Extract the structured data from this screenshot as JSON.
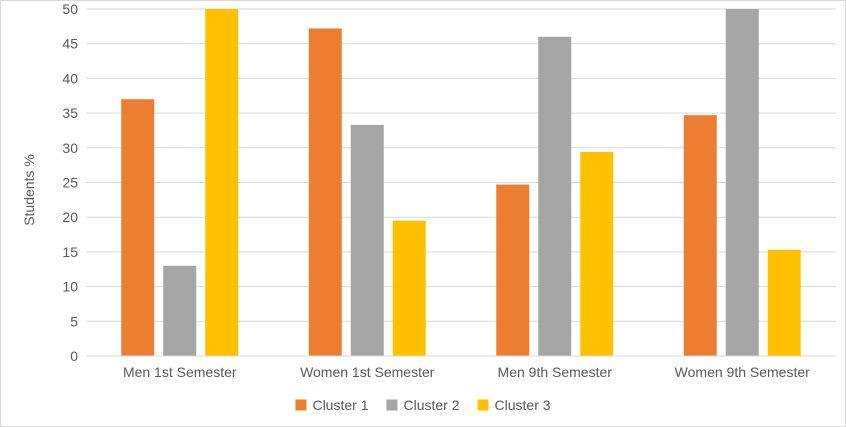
{
  "chart_data": {
    "type": "bar",
    "title": "",
    "xlabel": "",
    "ylabel": "Students %",
    "ylim": [
      0,
      50
    ],
    "yticks": [
      0,
      5,
      10,
      15,
      20,
      25,
      30,
      35,
      40,
      45,
      50
    ],
    "grid": true,
    "legend_position": "bottom",
    "categories": [
      "Men 1st Semester",
      "Women 1st Semester",
      "Men 9th Semester",
      "Women 9th Semester"
    ],
    "series": [
      {
        "name": "Cluster 1",
        "color": "#ED7D31",
        "values": [
          37.0,
          47.2,
          24.7,
          34.7
        ]
      },
      {
        "name": "Cluster 2",
        "color": "#A5A5A5",
        "values": [
          13.0,
          33.3,
          46.0,
          50.0
        ]
      },
      {
        "name": "Cluster 3",
        "color": "#FFC000",
        "values": [
          50.0,
          19.5,
          29.4,
          15.3
        ]
      }
    ]
  }
}
